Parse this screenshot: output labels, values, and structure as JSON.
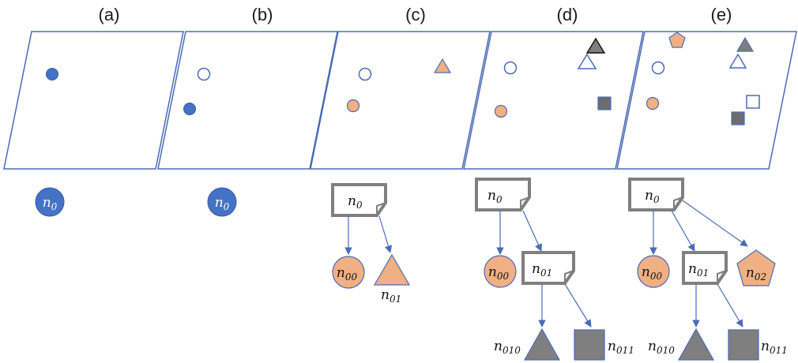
{
  "panels": [
    {
      "id": "a",
      "label": "(a)"
    },
    {
      "id": "b",
      "label": "(b)"
    },
    {
      "id": "c",
      "label": "(c)"
    },
    {
      "id": "d",
      "label": "(d)"
    },
    {
      "id": "e",
      "label": "(e)"
    }
  ],
  "node_labels": {
    "n0": {
      "base": "n",
      "sub": "0"
    },
    "n00": {
      "base": "n",
      "sub": "00"
    },
    "n01": {
      "base": "n",
      "sub": "01"
    },
    "n02": {
      "base": "n",
      "sub": "02"
    },
    "n010": {
      "base": "n",
      "sub": "010"
    },
    "n011": {
      "base": "n",
      "sub": "011"
    }
  },
  "colors": {
    "outline_blue": "#4a6bb5",
    "fill_blue": "#4472c4",
    "fill_orange": "#f0b083",
    "fill_gray": "#7f7f7f",
    "node_border_gray": "#7f7f7f",
    "arrow_blue": "#4a6bb5"
  }
}
